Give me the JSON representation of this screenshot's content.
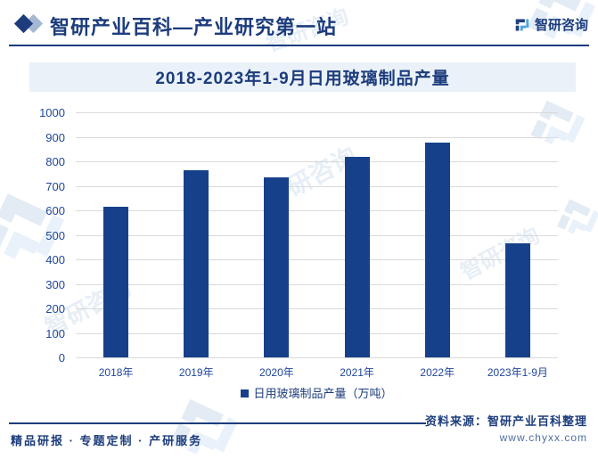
{
  "header": {
    "brand_title": "智研产业百科—产业研究第一站",
    "brand_logo_text": "智研咨询"
  },
  "chart_data": {
    "type": "bar",
    "title": "2018-2023年1-9月日用玻璃制品产量",
    "categories": [
      "2018年",
      "2019年",
      "2020年",
      "2021年",
      "2022年",
      "2023年1-9月"
    ],
    "values": [
      615,
      762,
      735,
      817,
      876,
      467
    ],
    "series_name": "日用玻璃制品产量（万吨）",
    "unit": "万吨",
    "ylim": [
      0,
      1000
    ],
    "ytick_step": 100,
    "grid": true,
    "legend_position": "bottom",
    "bar_color": "#16418a"
  },
  "watermark_text": "智研咨询",
  "footer": {
    "services": "精品研报 · 专题定制 · 产研服务",
    "source": "资料来源：智研产业百科整理",
    "website": "www.chyxx.com"
  },
  "colors": {
    "navy": "#1c3c7c",
    "bar": "#16418a",
    "banner_bg": "#eaf1f9",
    "grid": "#d9d9d9",
    "logo_light_blue": "#4da7dc"
  }
}
